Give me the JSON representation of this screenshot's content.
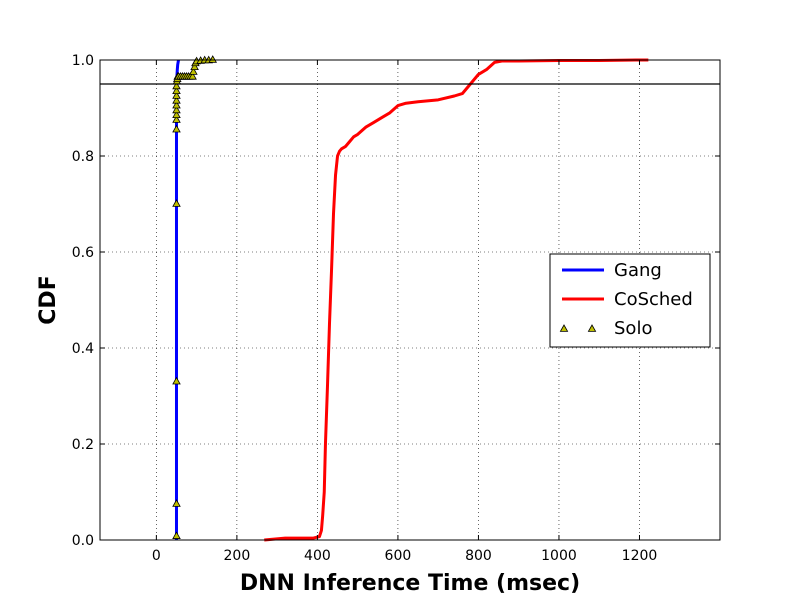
{
  "chart_data": {
    "type": "line",
    "xlabel": "DNN Inference Time (msec)",
    "ylabel": "CDF",
    "xlim": [
      -140,
      1400
    ],
    "ylim": [
      0.0,
      1.0
    ],
    "xticks": [
      0,
      200,
      400,
      600,
      800,
      1000,
      1200
    ],
    "yticks": [
      0.0,
      0.2,
      0.4,
      0.6,
      0.8,
      1.0
    ],
    "xtick_labels": [
      "0",
      "200",
      "400",
      "600",
      "800",
      "1000",
      "1200"
    ],
    "ytick_labels": [
      "0.0",
      "0.2",
      "0.4",
      "0.6",
      "0.8",
      "1.0"
    ],
    "grid": true,
    "legend_position": "right",
    "reference_line_y": 0.95,
    "series": [
      {
        "name": "Gang",
        "color": "#0000ff",
        "style": "line",
        "x": [
          50,
          50,
          50,
          50,
          50,
          52,
          53,
          55
        ],
        "y": [
          0.0,
          0.2,
          0.5,
          0.8,
          0.95,
          0.98,
          0.99,
          1.0
        ]
      },
      {
        "name": "CoSched",
        "color": "#ff0000",
        "style": "line",
        "x": [
          268,
          320,
          350,
          390,
          405,
          410,
          413,
          417,
          420,
          425,
          430,
          435,
          440,
          445,
          450,
          455,
          460,
          470,
          480,
          490,
          500,
          520,
          540,
          560,
          580,
          600,
          620,
          650,
          700,
          740,
          760,
          780,
          800,
          820,
          840,
          860,
          900,
          1000,
          1100,
          1200,
          1222
        ],
        "y": [
          0.0,
          0.004,
          0.004,
          0.004,
          0.007,
          0.02,
          0.05,
          0.1,
          0.2,
          0.32,
          0.45,
          0.56,
          0.68,
          0.76,
          0.8,
          0.81,
          0.815,
          0.82,
          0.83,
          0.84,
          0.845,
          0.86,
          0.87,
          0.88,
          0.89,
          0.905,
          0.91,
          0.913,
          0.917,
          0.925,
          0.93,
          0.95,
          0.97,
          0.98,
          0.995,
          0.998,
          0.998,
          0.999,
          0.999,
          1.0,
          1.0
        ]
      },
      {
        "name": "Solo",
        "color": "#bfbf00",
        "style": "markers",
        "marker": "triangle",
        "x": [
          50,
          50,
          50,
          50,
          50,
          50,
          50,
          50,
          50,
          50,
          50,
          50,
          50,
          51,
          52,
          53,
          55,
          60,
          65,
          70,
          75,
          80,
          85,
          90,
          92,
          95,
          97,
          100,
          110,
          120,
          130,
          140
        ],
        "y": [
          0.008,
          0.075,
          0.33,
          0.7,
          0.855,
          0.875,
          0.885,
          0.895,
          0.905,
          0.915,
          0.925,
          0.935,
          0.945,
          0.955,
          0.96,
          0.965,
          0.965,
          0.965,
          0.965,
          0.965,
          0.965,
          0.965,
          0.965,
          0.965,
          0.975,
          0.985,
          0.993,
          0.997,
          0.998,
          0.999,
          0.999,
          1.0
        ]
      }
    ]
  }
}
